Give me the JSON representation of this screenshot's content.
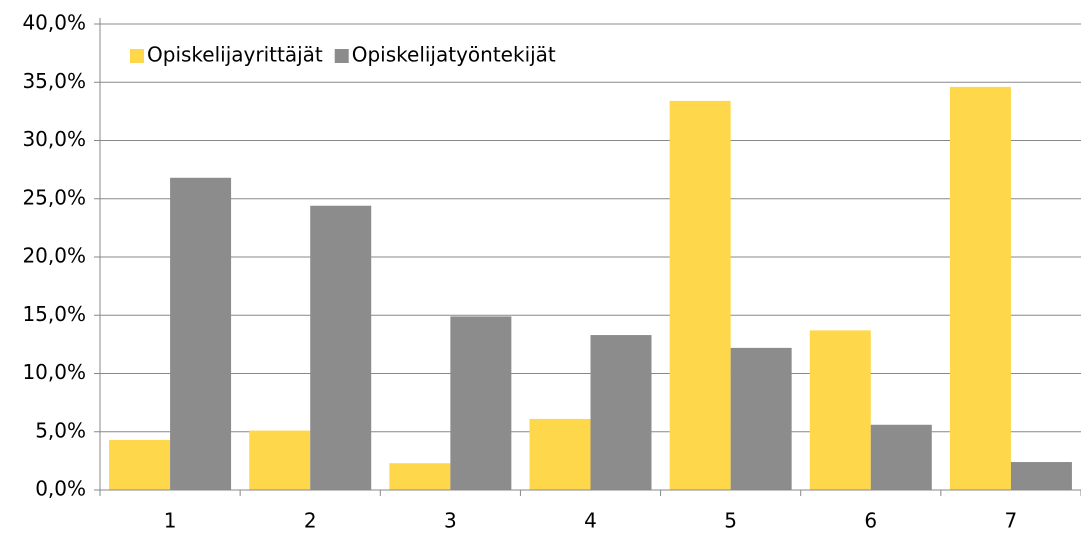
{
  "chart_data": {
    "type": "bar",
    "categories": [
      "1",
      "2",
      "3",
      "4",
      "5",
      "6",
      "7"
    ],
    "series": [
      {
        "name": "Opiskelijayrittäjät",
        "color": "#ffd74a",
        "values": [
          4.3,
          5.1,
          2.3,
          6.1,
          33.4,
          13.7,
          34.6
        ]
      },
      {
        "name": "Opiskelijatyöntekijät",
        "color": "#8c8c8c",
        "values": [
          26.8,
          24.4,
          14.9,
          13.3,
          12.2,
          5.6,
          2.4
        ]
      }
    ],
    "ylim": [
      0,
      40
    ],
    "yticks": [
      {
        "value": 0,
        "label": "0,0%"
      },
      {
        "value": 5,
        "label": "5,0%"
      },
      {
        "value": 10,
        "label": "10,0%"
      },
      {
        "value": 15,
        "label": "15,0%"
      },
      {
        "value": 20,
        "label": "20,0%"
      },
      {
        "value": 25,
        "label": "25,0%"
      },
      {
        "value": 30,
        "label": "30,0%"
      },
      {
        "value": 35,
        "label": "35,0%"
      },
      {
        "value": 40,
        "label": "40,0%"
      }
    ],
    "grid": true,
    "legend": "top-left"
  }
}
